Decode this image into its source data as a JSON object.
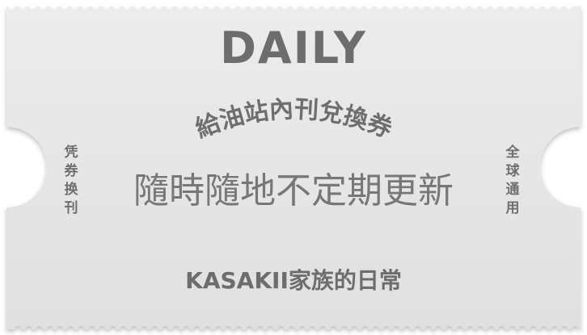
{
  "ticket": {
    "title": "DAILY",
    "arc_text": "給油站內刊兌換券",
    "subtitle": "隨時隨地不定期更新",
    "footer": "KASAKII家族的日常",
    "left_vertical": "凭券换刊",
    "right_vertical": "全球通用"
  },
  "colors": {
    "paper": "#e6e6e6",
    "text": "#6f6f6f",
    "background": "#ffffff"
  }
}
